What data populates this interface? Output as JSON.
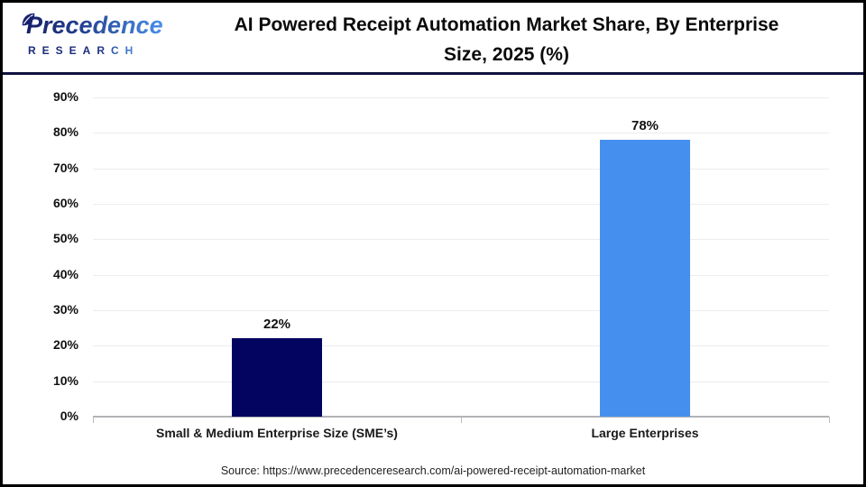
{
  "header": {
    "logo": {
      "brand": "Precedence",
      "sub": "RESEARCH"
    },
    "title_line1": "AI Powered Receipt Automation Market Share, By Enterprise",
    "title_line2": "Size, 2025 (%)"
  },
  "chart_data": {
    "type": "bar",
    "title": "AI Powered Receipt Automation Market Share, By Enterprise Size, 2025 (%)",
    "categories": [
      "Small & Medium Enterprise Size (SME’s)",
      "Large Enterprises"
    ],
    "values": [
      22,
      78
    ],
    "value_labels": [
      "22%",
      "78%"
    ],
    "bar_colors": [
      "#030460",
      "#4590ee"
    ],
    "xlabel": "",
    "ylabel": "",
    "ylim": [
      0,
      90
    ],
    "ytick_step": 10,
    "ytick_labels": [
      "0%",
      "10%",
      "20%",
      "30%",
      "40%",
      "50%",
      "60%",
      "70%",
      "80%",
      "90%"
    ],
    "grid": true,
    "legend": false
  },
  "footer": {
    "source": "Source: https://www.precedenceresearch.com/ai-powered-receipt-automation-market"
  },
  "colors": {
    "sme_bar": "#030460",
    "large_bar": "#4590ee",
    "frame_border": "#000000",
    "header_separator": "#10123f",
    "gridline": "#ededee",
    "axis_line": "#b3b3b6"
  }
}
